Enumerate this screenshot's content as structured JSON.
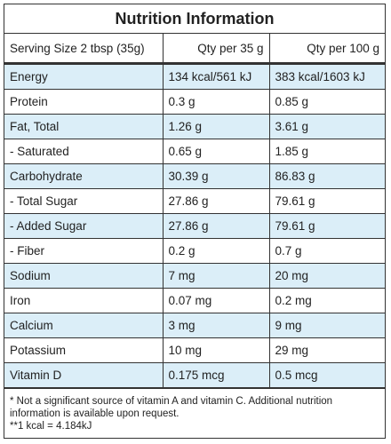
{
  "title": "Nutrition Information",
  "header": [
    "Serving Size 2 tbsp (35g)",
    "Qty per 35 g",
    "Qty per 100 g"
  ],
  "rows": [
    [
      "Energy",
      "134 kcal/561 kJ",
      "383 kcal/1603 kJ"
    ],
    [
      "Protein",
      "0.3 g",
      "0.85 g"
    ],
    [
      "Fat, Total",
      "1.26 g",
      "3.61 g"
    ],
    [
      "- Saturated",
      "0.65 g",
      "1.85 g"
    ],
    [
      "Carbohydrate",
      "30.39 g",
      "86.83 g"
    ],
    [
      "- Total Sugar",
      "27.86 g",
      "79.61 g"
    ],
    [
      "- Added Sugar",
      "27.86 g",
      "79.61 g"
    ],
    [
      "- Fiber",
      "0.2 g",
      "0.7 g"
    ],
    [
      "Sodium",
      "7 mg",
      "20 mg"
    ],
    [
      "Iron",
      "0.07 mg",
      "0.2 mg"
    ],
    [
      "Calcium",
      "3 mg",
      "9 mg"
    ],
    [
      "Potassium",
      "10 mg",
      "29 mg"
    ],
    [
      "Vitamin D",
      "0.175 mcg",
      "0.5 mcg"
    ]
  ],
  "notes": [
    "* Not a significant source of vitamin A and vitamin C. Additional nutrition information is available upon request.",
    "**1 kcal = 4.184kJ"
  ]
}
